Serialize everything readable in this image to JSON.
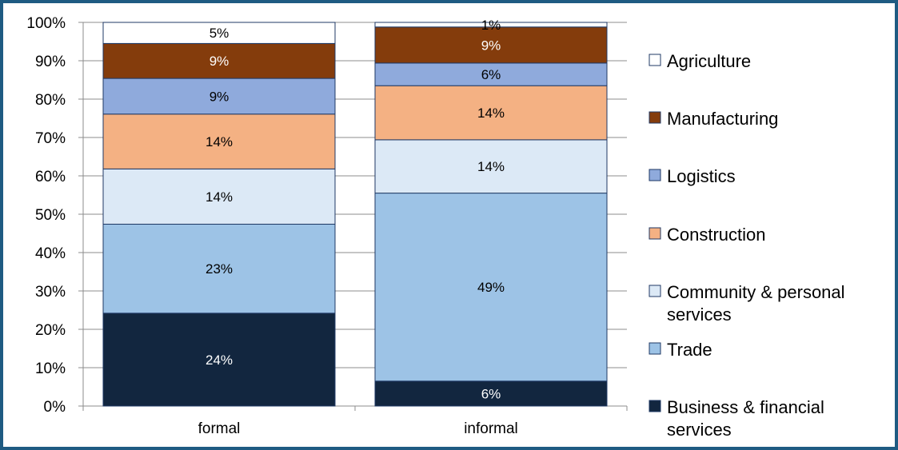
{
  "chart_data": {
    "type": "bar",
    "stacked": true,
    "categories": [
      "formal",
      "informal"
    ],
    "ylim": [
      0,
      100
    ],
    "y_ticks": [
      "0%",
      "10%",
      "20%",
      "30%",
      "40%",
      "50%",
      "60%",
      "70%",
      "80%",
      "90%",
      "100%"
    ],
    "series": [
      {
        "name": "Business & financial services",
        "values": [
          24.2,
          6.5
        ],
        "labels": [
          "24%",
          "6%"
        ],
        "color": "#12263f"
      },
      {
        "name": "Trade",
        "values": [
          23.2,
          49.0
        ],
        "labels": [
          "23%",
          "49%"
        ],
        "color": "#9dc3e6"
      },
      {
        "name": "Community & personal services",
        "values": [
          14.4,
          13.9
        ],
        "labels": [
          "14%",
          "14%"
        ],
        "color": "#dce9f6"
      },
      {
        "name": "Construction",
        "values": [
          14.3,
          14.1
        ],
        "labels": [
          "14%",
          "14%"
        ],
        "color": "#f4b183"
      },
      {
        "name": "Logistics",
        "values": [
          9.3,
          5.9
        ],
        "labels": [
          "9%",
          "6%"
        ],
        "color": "#8faadc"
      },
      {
        "name": "Manufacturing",
        "values": [
          9.1,
          9.4
        ],
        "labels": [
          "9%",
          "9%"
        ],
        "color": "#843c0c"
      },
      {
        "name": "Agriculture",
        "values": [
          5.5,
          1.2
        ],
        "labels": [
          "5%",
          "1%"
        ],
        "color": "#ffffff"
      }
    ],
    "legend": {
      "position": "right",
      "items": [
        {
          "lines": [
            "Agriculture"
          ],
          "color": "#ffffff"
        },
        {
          "lines": [
            "Manufacturing"
          ],
          "color": "#843c0c"
        },
        {
          "lines": [
            "Logistics"
          ],
          "color": "#8faadc"
        },
        {
          "lines": [
            "Construction"
          ],
          "color": "#f4b183"
        },
        {
          "lines": [
            "Community & personal",
            "services"
          ],
          "color": "#dce9f6"
        },
        {
          "lines": [
            "Trade"
          ],
          "color": "#9dc3e6"
        },
        {
          "lines": [
            "Business & financial",
            "services"
          ],
          "color": "#12263f"
        }
      ]
    },
    "grid": true,
    "bar_border_color": "#1f3864",
    "gridline_color": "#8c8c8c"
  }
}
